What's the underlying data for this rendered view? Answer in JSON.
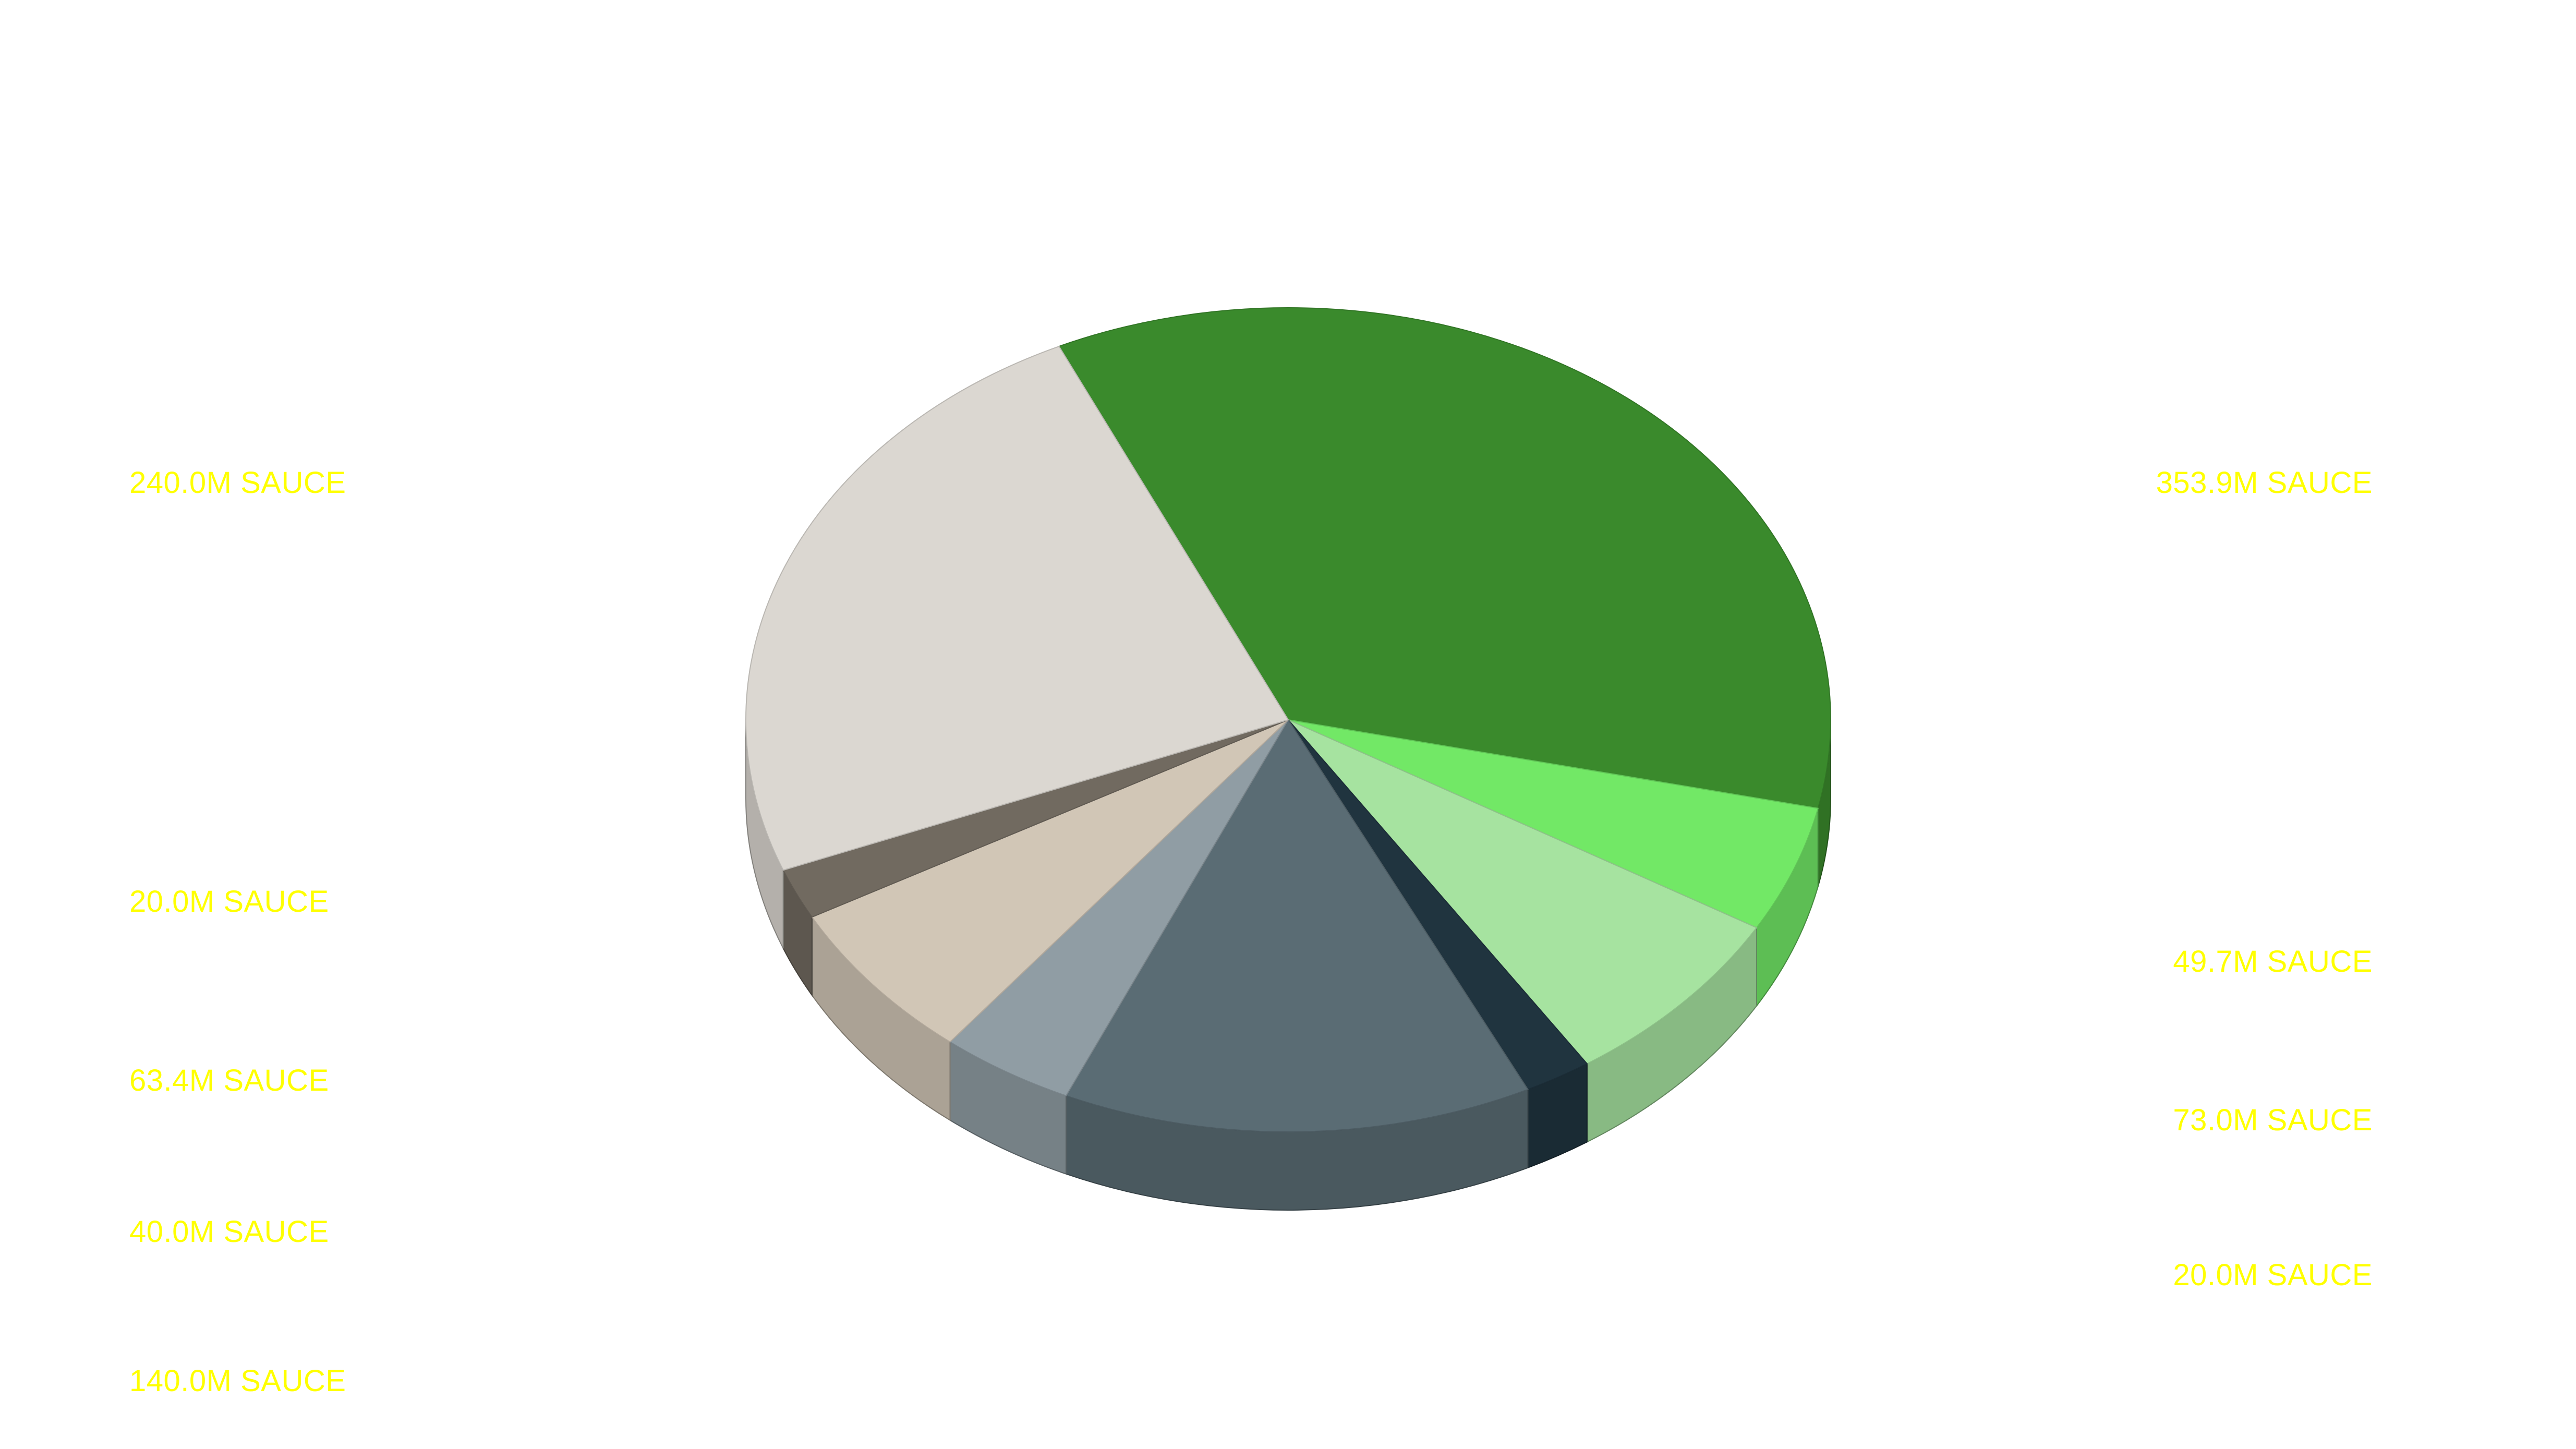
{
  "chart_data": {
    "type": "pie",
    "style": "3d",
    "label_color": "#ffff00",
    "slices": [
      {
        "value": 353.9,
        "label": "353.9M SAUCE",
        "color": "#3a8a2c",
        "label_side": "right"
      },
      {
        "value": 49.7,
        "label": "49.7M SAUCE",
        "color": "#72e866",
        "label_side": "right"
      },
      {
        "value": 73.0,
        "label": "73.0M SAUCE",
        "color": "#a6e3a0",
        "label_side": "right"
      },
      {
        "value": 20.0,
        "label": "20.0M SAUCE",
        "color": "#20343f",
        "label_side": "right"
      },
      {
        "value": 140.0,
        "label": "140.0M SAUCE",
        "color": "#5a6c74",
        "label_side": "left"
      },
      {
        "value": 40.0,
        "label": "40.0M SAUCE",
        "color": "#909da4",
        "label_side": "left"
      },
      {
        "value": 63.4,
        "label": "63.4M SAUCE",
        "color": "#d1c6b6",
        "label_side": "left"
      },
      {
        "value": 20.0,
        "label": "20.0M SAUCE",
        "color": "#716a60",
        "label_side": "left"
      },
      {
        "value": 240.0,
        "label": "240.0M SAUCE",
        "color": "#dbd7d1",
        "label_side": "left"
      }
    ]
  }
}
